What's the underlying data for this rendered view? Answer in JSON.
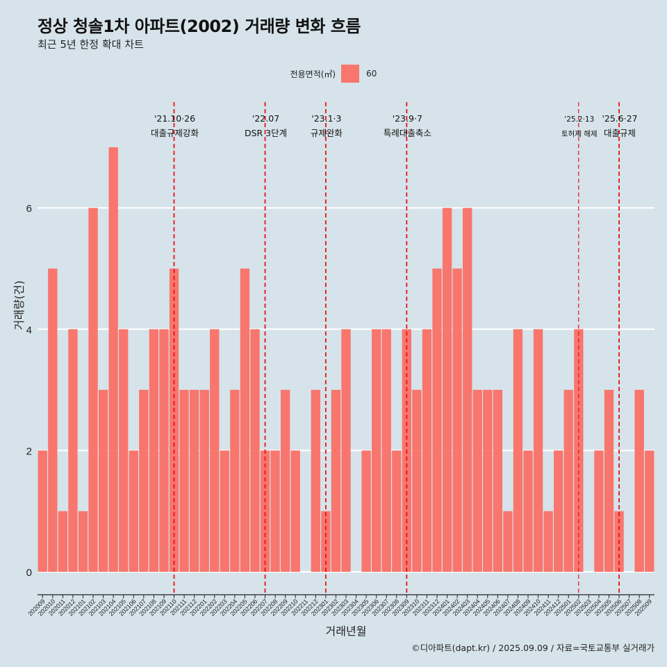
{
  "title": "정상 청솔1차 아파트(2002) 거래량 변화 흐름",
  "subtitle": "최근 5년 한정 확대 차트",
  "caption": "©디아파트(dapt.kr) / 2025.09.09 / 자료=국토교통부 실거래가",
  "legend": {
    "title": "전용면적(㎡)",
    "entries": [
      {
        "label": "60",
        "color": "#f8766d"
      }
    ]
  },
  "chart_data": {
    "type": "bar",
    "xlabel": "거래년월",
    "ylabel": "거래량(건)",
    "ylim": [
      0,
      7
    ],
    "yticks": [
      0,
      2,
      4,
      6
    ],
    "grid": "horizontal",
    "legend_position": "top",
    "categories": [
      "202009",
      "202010",
      "202011",
      "202012",
      "202101",
      "202102",
      "202103",
      "202104",
      "202105",
      "202106",
      "202107",
      "202108",
      "202109",
      "202110",
      "202111",
      "202112",
      "202201",
      "202202",
      "202203",
      "202204",
      "202205",
      "202206",
      "202207",
      "202208",
      "202209",
      "202210",
      "202211",
      "202212",
      "202301",
      "202302",
      "202303",
      "202304",
      "202305",
      "202306",
      "202307",
      "202308",
      "202309",
      "202310",
      "202311",
      "202312",
      "202401",
      "202402",
      "202403",
      "202404",
      "202405",
      "202406",
      "202407",
      "202408",
      "202409",
      "202410",
      "202411",
      "202412",
      "202501",
      "202502",
      "202503",
      "202504",
      "202505",
      "202506",
      "202507",
      "202508",
      "202509"
    ],
    "series": [
      {
        "name": "60",
        "color": "#f8766d",
        "values": [
          2,
          5,
          1,
          4,
          1,
          6,
          3,
          7,
          4,
          2,
          3,
          4,
          4,
          5,
          3,
          3,
          3,
          4,
          2,
          3,
          5,
          4,
          2,
          2,
          3,
          2,
          0,
          3,
          1,
          3,
          4,
          0,
          2,
          4,
          4,
          2,
          4,
          3,
          4,
          5,
          6,
          5,
          6,
          3,
          3,
          3,
          1,
          4,
          2,
          4,
          1,
          2,
          3,
          4,
          0,
          2,
          3,
          1,
          0,
          3,
          2
        ]
      }
    ],
    "annotations": [
      {
        "date": "'21.10·26",
        "label": "대출규제강화",
        "at": "202110"
      },
      {
        "date": "'22.07",
        "label": "DSR 3단계",
        "at": "202207"
      },
      {
        "date": "'23.1·3",
        "label": "규제완화",
        "at": "202301"
      },
      {
        "date": "'23.9·7",
        "label": "특례대출축소",
        "at": "202309"
      },
      {
        "date": "'25.2·13",
        "label": "토허제 해제",
        "at": "202502"
      },
      {
        "date": "'25.6·27",
        "label": "대출규제",
        "at": "202506"
      }
    ],
    "reference_line_color": "#e8111a"
  }
}
